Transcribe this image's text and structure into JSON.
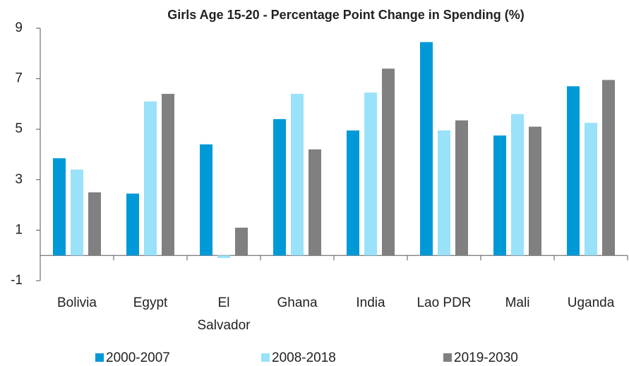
{
  "chart_data": {
    "type": "bar",
    "title": "Girls Age 15-20 - Percentage Point Change in Spending (%)",
    "categories": [
      "Bolivia",
      "Egypt",
      "El Salvador",
      "Ghana",
      "India",
      "Lao PDR",
      "Mali",
      "Uganda"
    ],
    "series": [
      {
        "name": "2000-2007",
        "color": "#0099d8",
        "values": [
          3.85,
          2.45,
          4.4,
          5.4,
          4.95,
          8.45,
          4.75,
          6.7
        ]
      },
      {
        "name": "2008-2018",
        "color": "#99e2f9",
        "values": [
          3.4,
          6.1,
          -0.1,
          6.4,
          6.45,
          4.95,
          5.6,
          5.25
        ]
      },
      {
        "name": "2019-2030",
        "color": "#808080",
        "values": [
          2.5,
          6.4,
          1.1,
          4.2,
          7.4,
          5.35,
          5.1,
          6.95
        ]
      }
    ],
    "ylim": [
      -1,
      9
    ],
    "yticks": [
      -1,
      1,
      3,
      5,
      7,
      9
    ],
    "grid": false,
    "legend": "bottom"
  }
}
